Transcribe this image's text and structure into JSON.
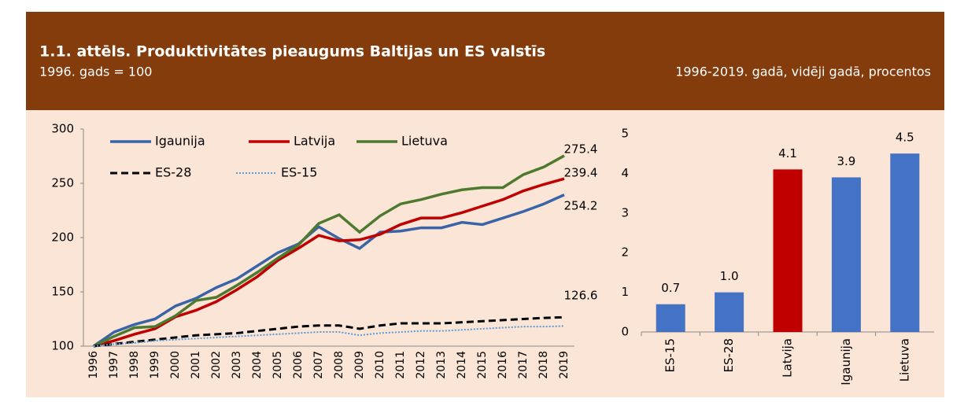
{
  "header": {
    "title": "1.1. attēls. Produktivitātes pieaugums Baltijas un ES valstīs",
    "subtitle_left": "1996. gads = 100",
    "subtitle_right": "1996-2019. gadā, vidēji gadā, procentos"
  },
  "chart_data": [
    {
      "type": "line",
      "categories": [
        "1996",
        "1997",
        "1998",
        "1999",
        "2000",
        "2001",
        "2002",
        "2003",
        "2004",
        "2005",
        "2006",
        "2007",
        "2008",
        "2009",
        "2010",
        "2011",
        "2012",
        "2013",
        "2014",
        "2015",
        "2016",
        "2017",
        "2018",
        "2019"
      ],
      "series": [
        {
          "name": "Igaunija",
          "color": "#3a64a8",
          "style": "solid",
          "values": [
            100,
            113,
            120,
            125,
            137,
            144,
            154,
            162,
            174,
            186,
            194,
            210,
            199,
            190,
            205,
            206,
            209,
            209,
            214,
            212,
            218,
            224,
            231,
            239.4
          ]
        },
        {
          "name": "Latvija",
          "color": "#c00000",
          "style": "solid",
          "values": [
            100,
            105,
            111,
            116,
            127,
            133,
            141,
            152,
            164,
            179,
            190,
            202,
            197,
            198,
            203,
            212,
            218,
            218,
            223,
            229,
            235,
            243,
            249,
            254.2
          ]
        },
        {
          "name": "Lietuva",
          "color": "#4e7a2f",
          "style": "solid",
          "values": [
            100,
            109,
            117,
            118,
            128,
            142,
            145,
            156,
            168,
            181,
            193,
            213,
            221,
            205,
            220,
            231,
            235,
            240,
            244,
            246,
            246,
            258,
            265,
            275.4
          ]
        },
        {
          "name": "ES-28",
          "color": "#000000",
          "style": "dashed",
          "values": [
            100,
            102,
            104,
            106,
            108,
            110,
            111,
            112,
            114,
            116,
            118,
            119,
            119,
            116,
            119,
            121,
            121,
            121,
            122,
            123,
            124,
            125,
            126,
            126.6
          ]
        },
        {
          "name": "ES-15",
          "color": "#5b9bd5",
          "style": "dotted",
          "values": [
            100,
            102,
            103,
            105,
            106,
            107,
            108,
            109,
            110,
            111,
            112,
            113,
            113,
            110,
            112,
            113,
            114,
            114,
            115,
            116,
            117,
            118,
            118,
            118.5
          ]
        }
      ],
      "annotations": [
        "275.4",
        "239.4",
        "254.2",
        "126.6"
      ],
      "ylim": [
        100,
        300
      ],
      "yticks": [
        100,
        150,
        200,
        250,
        300
      ],
      "grid": false
    },
    {
      "type": "bar",
      "categories": [
        "ES-15",
        "ES-28",
        "Latvija",
        "Igaunija",
        "Lietuva"
      ],
      "values": [
        0.7,
        1,
        4.1,
        3.9,
        4.5
      ],
      "value_labels": [
        "0.7",
        "1.0",
        "4.1",
        "3.9",
        "4.5"
      ],
      "colors": [
        "#4472c4",
        "#4472c4",
        "#c00000",
        "#4472c4",
        "#4472c4"
      ],
      "ylim": [
        0,
        5
      ],
      "yticks": [
        0,
        1,
        2,
        3,
        4,
        5
      ],
      "grid": false
    }
  ]
}
